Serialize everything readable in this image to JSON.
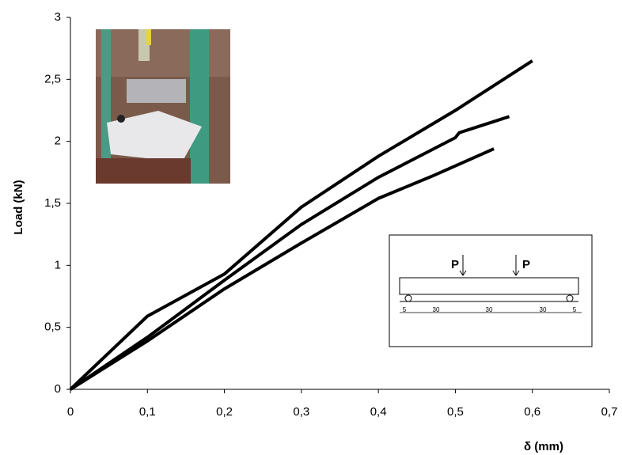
{
  "chart_data": {
    "type": "line",
    "xlabel": "δ (mm)",
    "ylabel": "Load (kN)",
    "xlim": [
      0,
      0.7
    ],
    "ylim": [
      0,
      3
    ],
    "xticks": [
      0,
      {
        "value": 0.1,
        "label": "0,1"
      },
      {
        "value": 0.2,
        "label": "0,2"
      },
      {
        "value": 0.3,
        "label": "0,3"
      },
      {
        "value": 0.4,
        "label": "0,4"
      },
      {
        "value": 0.5,
        "label": "0,5"
      },
      {
        "value": 0.6,
        "label": "0,6"
      },
      {
        "value": 0.7,
        "label": "0,7"
      }
    ],
    "yticks": [
      0,
      {
        "value": 0.5,
        "label": "0,5"
      },
      1,
      {
        "value": 1.5,
        "label": "1,5"
      },
      2,
      {
        "value": 2.5,
        "label": "2,5"
      },
      3
    ],
    "grid": false,
    "series": [
      {
        "color": "#000000",
        "x": [
          0,
          0.1,
          0.2,
          0.3,
          0.4,
          0.5,
          0.6
        ],
        "values": [
          0,
          0.59,
          0.93,
          1.47,
          1.88,
          2.25,
          2.65
        ]
      },
      {
        "color": "#000000",
        "x": [
          0,
          0.1,
          0.2,
          0.3,
          0.4,
          0.5,
          0.505,
          0.57
        ],
        "values": [
          0,
          0.42,
          0.88,
          1.33,
          1.71,
          2.03,
          2.07,
          2.2
        ]
      },
      {
        "color": "#000000",
        "x": [
          0,
          0.1,
          0.2,
          0.3,
          0.4,
          0.47,
          0.55
        ],
        "values": [
          0,
          0.39,
          0.81,
          1.18,
          1.54,
          1.72,
          1.94
        ]
      }
    ],
    "inset_labels": {
      "loads": [
        "P",
        "P"
      ],
      "spans": [
        "5",
        "30",
        "30",
        "30",
        "5"
      ]
    }
  }
}
